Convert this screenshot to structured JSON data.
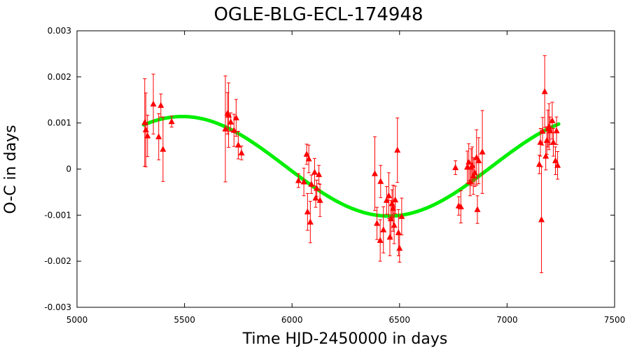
{
  "chart_data": {
    "type": "scatter",
    "title": "OGLE-BLG-ECL-174948",
    "xlabel": "Time HJD-2450000 in days",
    "ylabel": "O-C in days",
    "xlim": [
      5000,
      7500
    ],
    "ylim": [
      -0.003,
      0.003
    ],
    "x_ticks": [
      5000,
      5500,
      6000,
      6500,
      7000,
      7500
    ],
    "x_tick_labels": [
      "5000",
      "5500",
      "6000",
      "6500",
      "7000",
      "7500"
    ],
    "y_ticks": [
      -0.003,
      -0.002,
      -0.001,
      0,
      0.001,
      0.002,
      0.003
    ],
    "y_tick_labels": [
      "-0.003",
      "-0.002",
      "-0.001",
      "0",
      "0.001",
      "0.002",
      "0.003"
    ],
    "grid": false,
    "legend": "none",
    "colors": {
      "points": "#ff0000",
      "fit": "#00ee00"
    },
    "series": [
      {
        "type": "scatter-with-error-bars",
        "points": [
          {
            "x": 5315,
            "y": 0.00101,
            "err": 0.00095
          },
          {
            "x": 5320,
            "y": 0.00085,
            "err": 0.0008
          },
          {
            "x": 5328,
            "y": 0.00072,
            "err": 0.00045
          },
          {
            "x": 5355,
            "y": 0.00141,
            "err": 0.00065
          },
          {
            "x": 5380,
            "y": 0.0007,
            "err": 0.0005
          },
          {
            "x": 5390,
            "y": 0.00138,
            "err": 0.00025
          },
          {
            "x": 5400,
            "y": 0.00043,
            "err": 0.0007
          },
          {
            "x": 5440,
            "y": 0.00103,
            "err": 0.00012
          },
          {
            "x": 5690,
            "y": 0.00087,
            "err": 0.00115
          },
          {
            "x": 5700,
            "y": 0.00121,
            "err": 0.00045
          },
          {
            "x": 5705,
            "y": 0.00117,
            "err": 0.0007
          },
          {
            "x": 5715,
            "y": 0.00102,
            "err": 0.0002
          },
          {
            "x": 5730,
            "y": 0.00084,
            "err": 0.00035
          },
          {
            "x": 5740,
            "y": 0.00111,
            "err": 0.0004
          },
          {
            "x": 5750,
            "y": 0.00052,
            "err": 0.0003
          },
          {
            "x": 5765,
            "y": 0.00035,
            "err": 0.00015
          },
          {
            "x": 6030,
            "y": -0.00025,
            "err": 0.00015
          },
          {
            "x": 6055,
            "y": -0.00028,
            "err": 0.0003
          },
          {
            "x": 6068,
            "y": 0.00032,
            "err": 0.00022
          },
          {
            "x": 6072,
            "y": -0.00093,
            "err": 0.0004
          },
          {
            "x": 6078,
            "y": 0.00022,
            "err": 0.0003
          },
          {
            "x": 6085,
            "y": -0.00115,
            "err": 0.00045
          },
          {
            "x": 6090,
            "y": -0.00033,
            "err": 0.0002
          },
          {
            "x": 6105,
            "y": -7e-05,
            "err": 0.0003
          },
          {
            "x": 6110,
            "y": -0.00063,
            "err": 0.0002
          },
          {
            "x": 6115,
            "y": -0.00042,
            "err": 0.00018
          },
          {
            "x": 6125,
            "y": -0.00012,
            "err": 0.0002
          },
          {
            "x": 6130,
            "y": -0.00068,
            "err": 0.00035
          },
          {
            "x": 6385,
            "y": -0.0001,
            "err": 0.0008
          },
          {
            "x": 6395,
            "y": -0.00118,
            "err": 0.00035
          },
          {
            "x": 6410,
            "y": -0.00155,
            "err": 0.00045
          },
          {
            "x": 6412,
            "y": -0.00027,
            "err": 0.00035
          },
          {
            "x": 6425,
            "y": -0.00132,
            "err": 0.0005
          },
          {
            "x": 6440,
            "y": -0.00068,
            "err": 0.0003
          },
          {
            "x": 6450,
            "y": -0.00058,
            "err": 0.0005
          },
          {
            "x": 6455,
            "y": -0.00148,
            "err": 0.0004
          },
          {
            "x": 6460,
            "y": -0.00108,
            "err": 0.0004
          },
          {
            "x": 6465,
            "y": -0.00075,
            "err": 0.0003
          },
          {
            "x": 6470,
            "y": -0.00085,
            "err": 0.0005
          },
          {
            "x": 6475,
            "y": -0.00122,
            "err": 0.0004
          },
          {
            "x": 6480,
            "y": -0.00067,
            "err": 0.0003
          },
          {
            "x": 6490,
            "y": 0.00041,
            "err": 0.0007
          },
          {
            "x": 6495,
            "y": -0.00138,
            "err": 0.0005
          },
          {
            "x": 6500,
            "y": -0.00172,
            "err": 0.0003
          },
          {
            "x": 6510,
            "y": -0.00103,
            "err": 0.0004
          },
          {
            "x": 6760,
            "y": 3e-05,
            "err": 0.00015
          },
          {
            "x": 6775,
            "y": -0.0008,
            "err": 0.0002
          },
          {
            "x": 6785,
            "y": -0.00082,
            "err": 0.00035
          },
          {
            "x": 6815,
            "y": 4e-05,
            "err": 0.00035
          },
          {
            "x": 6822,
            "y": 0.00015,
            "err": 0.0004
          },
          {
            "x": 6828,
            "y": -0.00028,
            "err": 0.0003
          },
          {
            "x": 6833,
            "y": 4e-05,
            "err": 0.0004
          },
          {
            "x": 6838,
            "y": 8e-05,
            "err": 0.0004
          },
          {
            "x": 6843,
            "y": -0.00015,
            "err": 0.0004
          },
          {
            "x": 6850,
            "y": -8e-05,
            "err": 0.0003
          },
          {
            "x": 6858,
            "y": 0.00025,
            "err": 0.0006
          },
          {
            "x": 6862,
            "y": -0.00088,
            "err": 0.0003
          },
          {
            "x": 6868,
            "y": 0.00018,
            "err": 0.0005
          },
          {
            "x": 6885,
            "y": 0.00037,
            "err": 0.0009
          },
          {
            "x": 7150,
            "y": 0.0001,
            "err": 0.0002
          },
          {
            "x": 7155,
            "y": 0.00058,
            "err": 0.0003
          },
          {
            "x": 7160,
            "y": -0.0011,
            "err": 0.00115
          },
          {
            "x": 7165,
            "y": 0.00082,
            "err": 0.0003
          },
          {
            "x": 7175,
            "y": 0.00168,
            "err": 0.00078
          },
          {
            "x": 7180,
            "y": 0.00028,
            "err": 0.0003
          },
          {
            "x": 7185,
            "y": 0.00062,
            "err": 0.0003
          },
          {
            "x": 7190,
            "y": 0.00088,
            "err": 0.0004
          },
          {
            "x": 7195,
            "y": 0.00092,
            "err": 0.0005
          },
          {
            "x": 7200,
            "y": 0.00083,
            "err": 0.0003
          },
          {
            "x": 7210,
            "y": 0.00105,
            "err": 0.0004
          },
          {
            "x": 7215,
            "y": 0.00058,
            "err": 0.0003
          },
          {
            "x": 7225,
            "y": 0.00018,
            "err": 0.0003
          },
          {
            "x": 7230,
            "y": 0.00083,
            "err": 0.0003
          },
          {
            "x": 7235,
            "y": 8e-05,
            "err": 0.0003
          }
        ]
      },
      {
        "type": "fit-curve",
        "model": "sinusoid",
        "offset": 6e-05,
        "amplitude": 0.00108,
        "period": 1920,
        "peak_x": 5490,
        "x_range": [
          5310,
          7240
        ]
      }
    ]
  }
}
